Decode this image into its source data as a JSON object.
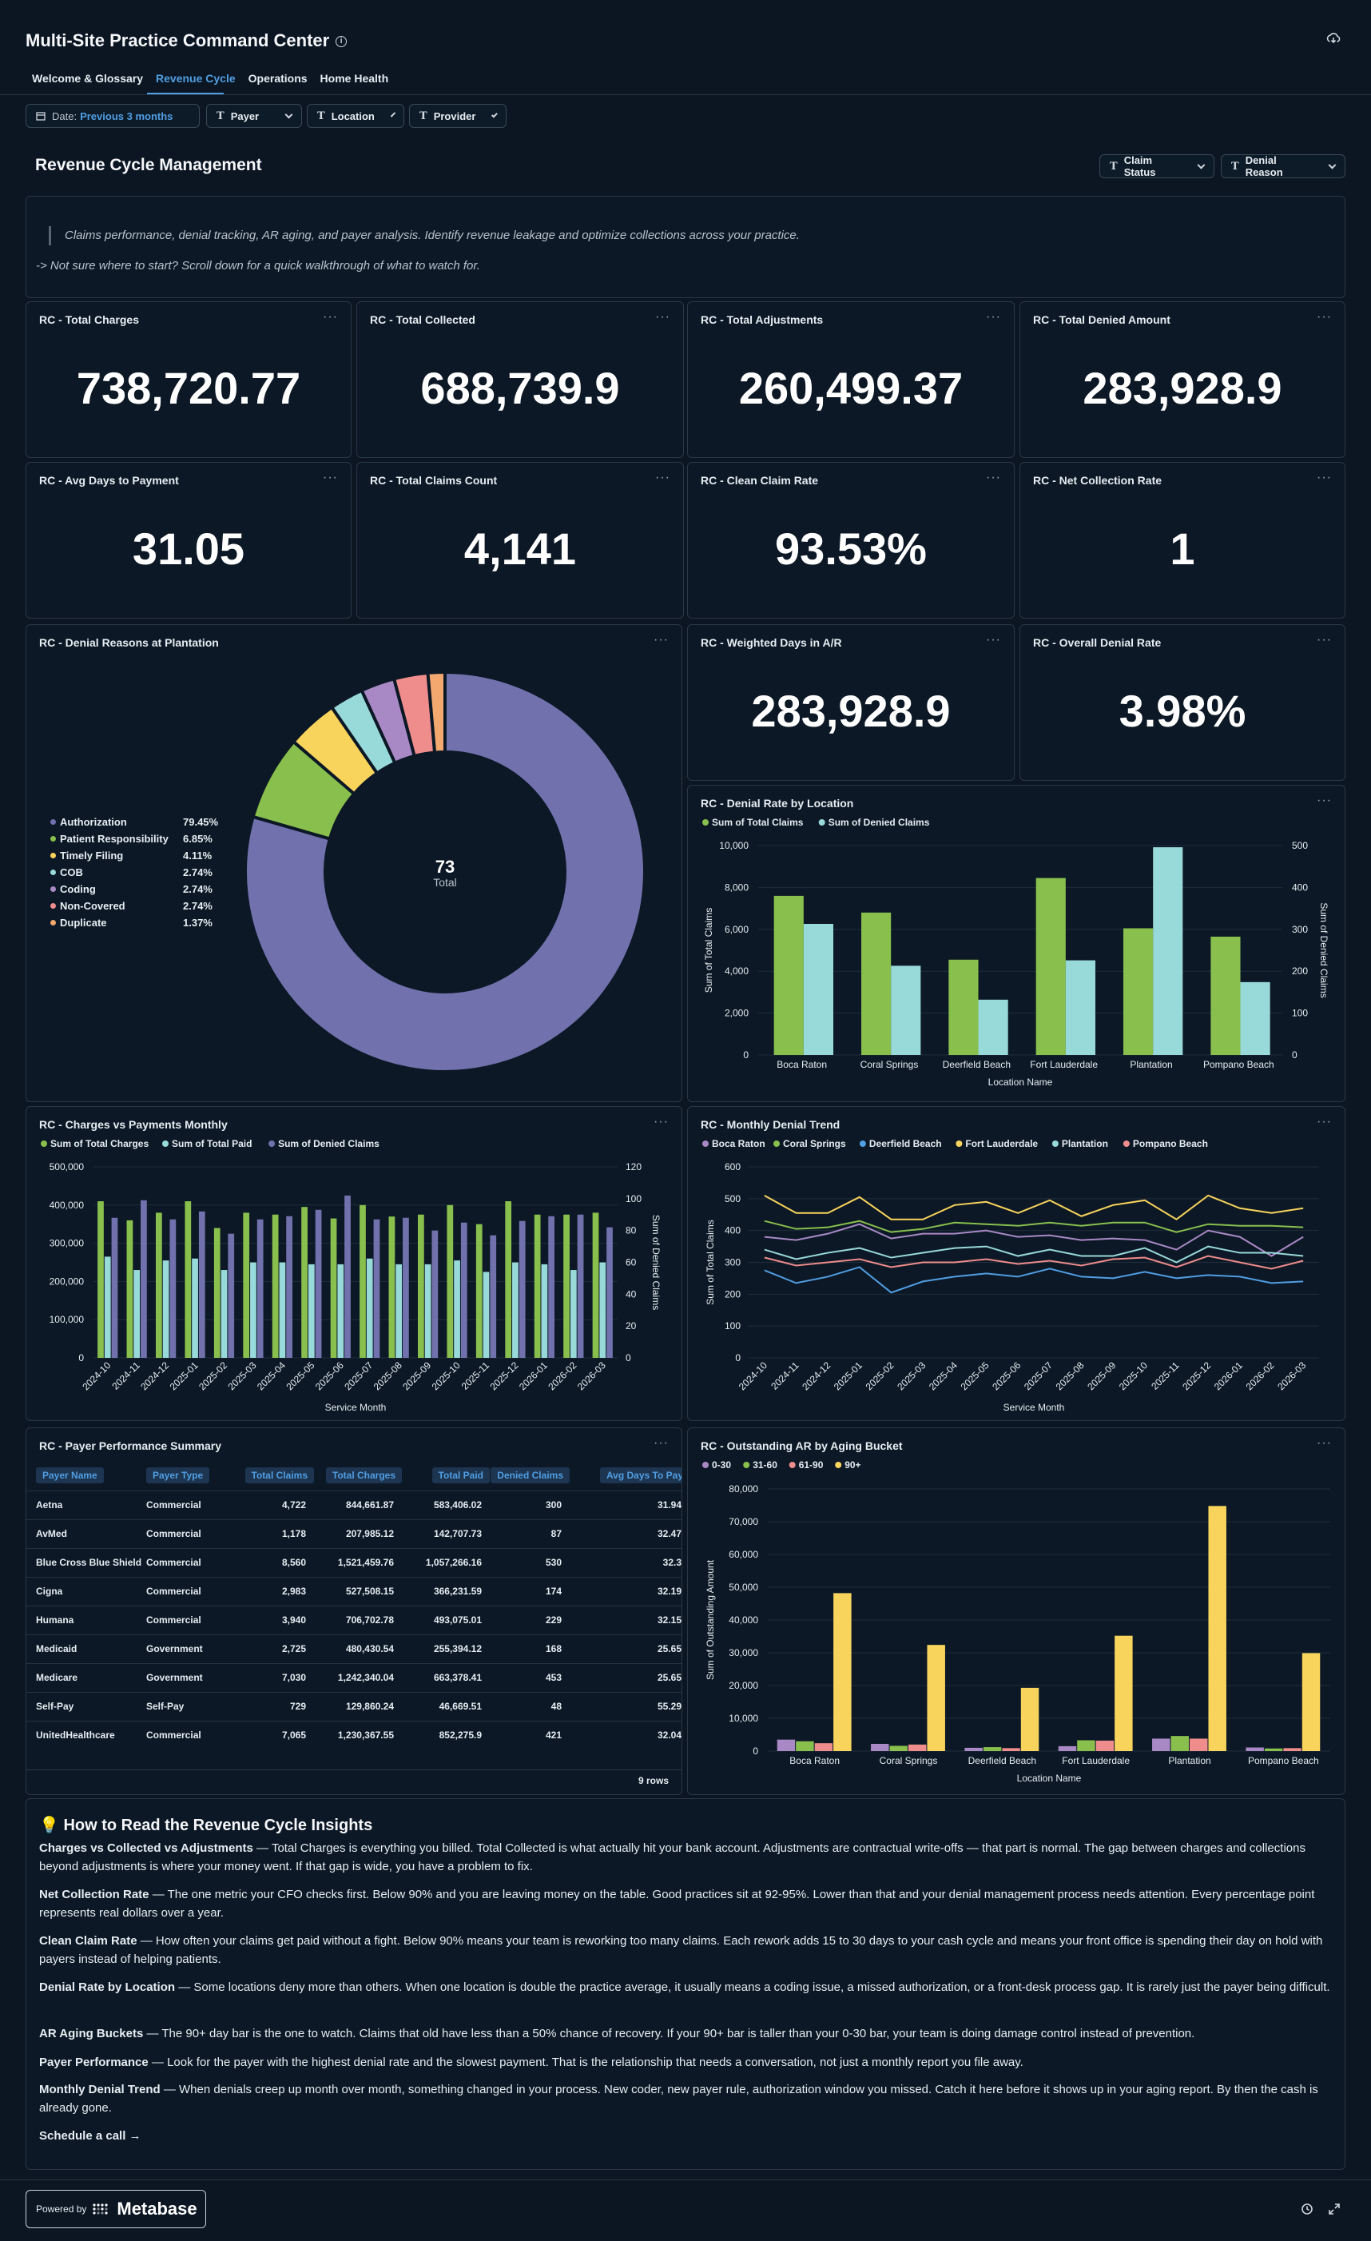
{
  "header": {
    "title": "Multi-Site Practice Command Center",
    "info_icon": "i"
  },
  "tabs": [
    {
      "label": "Welcome & Glossary"
    },
    {
      "label": "Revenue Cycle"
    },
    {
      "label": "Operations"
    },
    {
      "label": "Home Health"
    }
  ],
  "filters": {
    "date_label": "Date:",
    "date_value": "Previous 3 months",
    "payer": "Payer",
    "location": "Location",
    "provider": "Provider",
    "claim_status": "Claim Status",
    "denial_reason": "Denial Reason"
  },
  "section": {
    "title": "Revenue Cycle Management",
    "desc1": "Claims performance, denial tracking, AR aging, and payer analysis. Identify revenue leakage and optimize collections across your practice.",
    "desc2": "-> Not sure where to start? Scroll down for a quick walkthrough of what to watch for."
  },
  "kpis": [
    {
      "title": "RC - Total Charges",
      "value": "738,720.77"
    },
    {
      "title": "RC - Total Collected",
      "value": "688,739.9"
    },
    {
      "title": "RC - Total Adjustments",
      "value": "260,499.37"
    },
    {
      "title": "RC - Total Denied Amount",
      "value": "283,928.9"
    },
    {
      "title": "RC - Avg Days to Payment",
      "value": "31.05"
    },
    {
      "title": "RC - Total Claims Count",
      "value": "4,141"
    },
    {
      "title": "RC - Clean Claim Rate",
      "value": "93.53%"
    },
    {
      "title": "RC - Net Collection Rate",
      "value": "1"
    },
    {
      "title": "RC - Weighted Days in A/R",
      "value": "283,928.9"
    },
    {
      "title": "RC - Overall Denial Rate",
      "value": "3.98%"
    }
  ],
  "colors": {
    "green": "#88bf4d",
    "cyan": "#98d9d9",
    "purple": "#7172ad",
    "yellow": "#f9d45c",
    "blue": "#509ee3",
    "pink": "#ef8c8c",
    "lavender": "#a989c5",
    "orange": "#f2a86f"
  },
  "chart_data": [
    {
      "title": "RC - Denial Reasons at Plantation",
      "type": "pie",
      "total": "73",
      "total_label": "Total",
      "slices": [
        {
          "name": "Authorization",
          "pct": "79.45%",
          "value": 58,
          "color": "#7172ad"
        },
        {
          "name": "Patient Responsibility",
          "pct": "6.85%",
          "value": 5,
          "color": "#88bf4d"
        },
        {
          "name": "Timely Filing",
          "pct": "4.11%",
          "value": 3,
          "color": "#f9d45c"
        },
        {
          "name": "COB",
          "pct": "2.74%",
          "value": 2,
          "color": "#98d9d9"
        },
        {
          "name": "Coding",
          "pct": "2.74%",
          "value": 2,
          "color": "#a989c5"
        },
        {
          "name": "Non-Covered",
          "pct": "2.74%",
          "value": 2,
          "color": "#ef8c8c"
        },
        {
          "name": "Duplicate",
          "pct": "1.37%",
          "value": 1,
          "color": "#f2a86f"
        }
      ]
    },
    {
      "title": "RC - Denial Rate by Location",
      "type": "bar",
      "categories": [
        "Boca Raton",
        "Coral Springs",
        "Deerfield Beach",
        "Fort Lauderdale",
        "Plantation",
        "Pompano Beach"
      ],
      "series": [
        {
          "name": "Sum of Total Claims",
          "axis": "left",
          "color": "#88bf4d",
          "values": [
            7600,
            6800,
            4550,
            8450,
            6050,
            5650
          ]
        },
        {
          "name": "Sum of Denied Claims",
          "axis": "right",
          "color": "#98d9d9",
          "values": [
            313,
            213,
            132,
            226,
            496,
            174
          ]
        }
      ],
      "ylim": [
        0,
        10000
      ],
      "y2lim": [
        0,
        500
      ],
      "yticks": [
        "0",
        "2,000",
        "4,000",
        "6,000",
        "8,000",
        "10,000"
      ],
      "y2ticks": [
        "0",
        "100",
        "200",
        "300",
        "400",
        "500"
      ],
      "xlabel": "Location Name",
      "ylabel": "Sum of Total Claims",
      "y2label": "Sum of Denied Claims"
    },
    {
      "title": "RC - Charges vs Payments Monthly",
      "type": "bar",
      "categories": [
        "2024-10",
        "2024-11",
        "2024-12",
        "2025-01",
        "2025-02",
        "2025-03",
        "2025-04",
        "2025-05",
        "2025-06",
        "2025-07",
        "2025-08",
        "2025-09",
        "2025-10",
        "2025-11",
        "2025-12",
        "2026-01",
        "2026-02",
        "2026-03"
      ],
      "series": [
        {
          "name": "Sum of Total Charges",
          "axis": "left",
          "color": "#88bf4d",
          "values": [
            410000,
            360000,
            380000,
            410000,
            340000,
            380000,
            375000,
            395000,
            365000,
            400000,
            370000,
            375000,
            400000,
            350000,
            410000,
            375000,
            375000,
            380000
          ]
        },
        {
          "name": "Sum of Total Paid",
          "axis": "left",
          "color": "#98d9d9",
          "values": [
            265000,
            230000,
            255000,
            260000,
            230000,
            250000,
            250000,
            245000,
            245000,
            260000,
            245000,
            245000,
            255000,
            225000,
            250000,
            245000,
            230000,
            250000
          ]
        },
        {
          "name": "Sum of Denied Claims",
          "axis": "right",
          "color": "#7172ad",
          "values": [
            88,
            99,
            87,
            92,
            78,
            87,
            89,
            93,
            102,
            87,
            88,
            80,
            85,
            77,
            86,
            89,
            90,
            82
          ]
        }
      ],
      "ylim": [
        0,
        500000
      ],
      "y2lim": [
        0,
        120
      ],
      "yticks": [
        "0",
        "100,000",
        "200,000",
        "300,000",
        "400,000",
        "500,000"
      ],
      "y2ticks": [
        "0",
        "20",
        "40",
        "60",
        "80",
        "100",
        "120"
      ],
      "xlabel": "Service Month",
      "y2label": "Sum of Denied Claims"
    },
    {
      "title": "RC - Monthly Denial Trend",
      "type": "line",
      "categories": [
        "2024-10",
        "2024-11",
        "2024-12",
        "2025-01",
        "2025-02",
        "2025-03",
        "2025-04",
        "2025-05",
        "2025-06",
        "2025-07",
        "2025-08",
        "2025-09",
        "2025-10",
        "2025-11",
        "2025-12",
        "2026-01",
        "2026-02",
        "2026-03"
      ],
      "series": [
        {
          "name": "Boca Raton",
          "color": "#a989c5",
          "values": [
            380,
            370,
            390,
            420,
            375,
            390,
            390,
            400,
            380,
            385,
            370,
            375,
            370,
            340,
            400,
            380,
            320,
            380
          ]
        },
        {
          "name": "Coral Springs",
          "color": "#88bf4d",
          "values": [
            430,
            405,
            410,
            430,
            395,
            405,
            425,
            420,
            415,
            425,
            415,
            425,
            425,
            395,
            420,
            415,
            415,
            410
          ]
        },
        {
          "name": "Deerfield Beach",
          "color": "#509ee3",
          "values": [
            275,
            235,
            255,
            285,
            205,
            240,
            255,
            265,
            255,
            280,
            255,
            250,
            270,
            250,
            260,
            255,
            235,
            240
          ]
        },
        {
          "name": "Fort Lauderdale",
          "color": "#f9d45c",
          "values": [
            510,
            455,
            455,
            505,
            435,
            435,
            480,
            490,
            455,
            495,
            445,
            480,
            495,
            435,
            510,
            470,
            455,
            470
          ]
        },
        {
          "name": "Plantation",
          "color": "#98d9d9",
          "values": [
            340,
            310,
            330,
            345,
            315,
            330,
            345,
            350,
            320,
            340,
            320,
            320,
            345,
            300,
            350,
            330,
            330,
            320
          ]
        },
        {
          "name": "Pompano Beach",
          "color": "#ef8c8c",
          "values": [
            315,
            290,
            300,
            310,
            285,
            300,
            300,
            310,
            295,
            305,
            290,
            310,
            315,
            285,
            320,
            300,
            280,
            305
          ]
        }
      ],
      "ylim": [
        0,
        600
      ],
      "yticks": [
        "0",
        "100",
        "200",
        "300",
        "400",
        "500",
        "600"
      ],
      "xlabel": "Service Month",
      "ylabel": "Sum of Total Claims"
    },
    {
      "title": "RC - Outstanding AR by Aging Bucket",
      "type": "bar",
      "categories": [
        "Boca Raton",
        "Coral Springs",
        "Deerfield Beach",
        "Fort Lauderdale",
        "Plantation",
        "Pompano Beach"
      ],
      "series": [
        {
          "name": "0-30",
          "color": "#a989c5",
          "values": [
            3500,
            2200,
            1000,
            1500,
            3800,
            1100
          ]
        },
        {
          "name": "31-60",
          "color": "#88bf4d",
          "values": [
            3000,
            1600,
            1200,
            3300,
            4600,
            800
          ]
        },
        {
          "name": "61-90",
          "color": "#ef8c8c",
          "values": [
            2400,
            2000,
            900,
            3200,
            3800,
            900
          ]
        },
        {
          "name": "90+",
          "color": "#f9d45c",
          "values": [
            48200,
            32400,
            19300,
            35200,
            74800,
            29900
          ]
        }
      ],
      "ylim": [
        0,
        80000
      ],
      "yticks": [
        "0",
        "10,000",
        "20,000",
        "30,000",
        "40,000",
        "50,000",
        "60,000",
        "70,000",
        "80,000"
      ],
      "xlabel": "Location Name",
      "ylabel": "Sum of Outstanding Amount"
    }
  ],
  "payer_table": {
    "title": "RC - Payer Performance Summary",
    "columns": [
      "Payer Name",
      "Payer Type",
      "Total Claims",
      "Total Charges",
      "Total Paid",
      "Denied Claims",
      "Avg Days To Pay"
    ],
    "rows": [
      [
        "Aetna",
        "Commercial",
        "4,722",
        "844,661.87",
        "583,406.02",
        "300",
        "31.94"
      ],
      [
        "AvMed",
        "Commercial",
        "1,178",
        "207,985.12",
        "142,707.73",
        "87",
        "32.47"
      ],
      [
        "Blue Cross Blue Shield",
        "Commercial",
        "8,560",
        "1,521,459.76",
        "1,057,266.16",
        "530",
        "32.3"
      ],
      [
        "Cigna",
        "Commercial",
        "2,983",
        "527,508.15",
        "366,231.59",
        "174",
        "32.19"
      ],
      [
        "Humana",
        "Commercial",
        "3,940",
        "706,702.78",
        "493,075.01",
        "229",
        "32.15"
      ],
      [
        "Medicaid",
        "Government",
        "2,725",
        "480,430.54",
        "255,394.12",
        "168",
        "25.65"
      ],
      [
        "Medicare",
        "Government",
        "7,030",
        "1,242,340.04",
        "663,378.41",
        "453",
        "25.65"
      ],
      [
        "Self-Pay",
        "Self-Pay",
        "729",
        "129,860.24",
        "46,669.51",
        "48",
        "55.29"
      ],
      [
        "UnitedHealthcare",
        "Commercial",
        "7,065",
        "1,230,367.55",
        "852,275.9",
        "421",
        "32.04"
      ]
    ],
    "row_count": "9 rows"
  },
  "howto": {
    "title": "💡 How to Read the Revenue Cycle Insights",
    "items": [
      {
        "k": "Charges vs Collected vs Adjustments",
        "t": " — Total Charges is everything you billed. Total Collected is what actually hit your bank account. Adjustments are contractual write-offs — that part is normal. The gap between charges and collections beyond adjustments is where your money went. If that gap is wide, you have a problem to fix."
      },
      {
        "k": "Net Collection Rate",
        "t": " — The one metric your CFO checks first. Below 90% and you are leaving money on the table. Good practices sit at 92-95%. Lower than that and your denial management process needs attention. Every percentage point represents real dollars over a year."
      },
      {
        "k": "Clean Claim Rate",
        "t": " — How often your claims get paid without a fight. Below 90% means your team is reworking too many claims. Each rework adds 15 to 30 days to your cash cycle and means your front office is spending their day on hold with payers instead of helping patients."
      },
      {
        "k": "Denial Rate by Location",
        "t": " — Some locations deny more than others. When one location is double the practice average, it usually means a coding issue, a missed authorization, or a front-desk process gap. It is rarely just the payer being difficult."
      },
      {
        "k": "AR Aging Buckets",
        "t": " — The 90+ day bar is the one to watch. Claims that old have less than a 50% chance of recovery. If your 90+ bar is taller than your 0-30 bar, your team is doing damage control instead of prevention."
      },
      {
        "k": "Payer Performance",
        "t": " — Look for the payer with the highest denial rate and the slowest payment. That is the relationship that needs a conversation, not just a monthly report you file away."
      },
      {
        "k": "Monthly Denial Trend",
        "t": " — When denials creep up month over month, something changed in your process. New coder, new payer rule, authorization window you missed. Catch it here before it shows up in your aging report. By then the cash is already gone."
      }
    ],
    "cta": "Schedule a call →"
  },
  "footer": {
    "powered_by": "Powered by",
    "brand": "Metabase"
  }
}
